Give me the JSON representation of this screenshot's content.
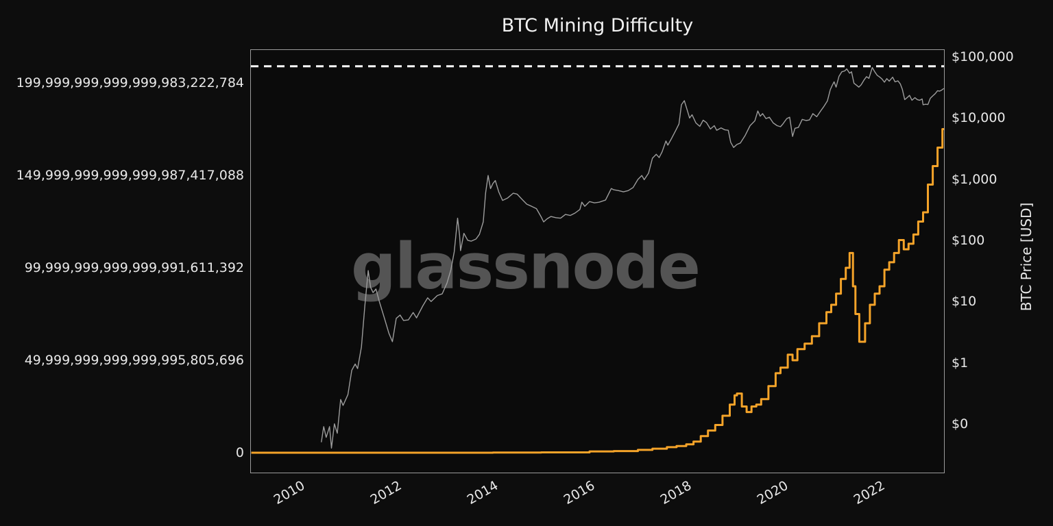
{
  "page": {
    "background": "#0d0d0d",
    "plot_frame_color": "#9c9c9c",
    "text_color": "#e8e8e8"
  },
  "chart_data": {
    "type": "line",
    "title": "BTC Mining Difficulty",
    "watermark": "glassnode",
    "watermark_color": "#545454",
    "right_ylabel": "BTC Price [USD]",
    "grid": false,
    "legend": "none",
    "xlim": [
      2008.993,
      2023.333
    ],
    "x_axis": {
      "ticks": [
        {
          "value": 2010,
          "label": "2010"
        },
        {
          "value": 2012,
          "label": "2012"
        },
        {
          "value": 2014,
          "label": "2014"
        },
        {
          "value": 2016,
          "label": "2016"
        },
        {
          "value": 2018,
          "label": "2018"
        },
        {
          "value": 2020,
          "label": "2020"
        },
        {
          "value": 2022,
          "label": "2022"
        }
      ]
    },
    "left_axis": {
      "scale": "linear",
      "lim": [
        -1.0741e+22,
        2.1778e+23
      ],
      "ticks": [
        {
          "value": 2e+23,
          "label": "199,999,999,999,999,983,222,784"
        },
        {
          "value": 1.5e+23,
          "label": "149,999,999,999,999,987,417,088"
        },
        {
          "value": 1e+23,
          "label": "99,999,999,999,999,991,611,392"
        },
        {
          "value": 5e+22,
          "label": "49,999,999,999,999,995,805,696"
        },
        {
          "value": 0,
          "label": "0"
        }
      ]
    },
    "right_axis": {
      "scale": "log",
      "lim": [
        0.01595,
        129400
      ],
      "ticks": [
        {
          "value": 100000,
          "label": "$100,000"
        },
        {
          "value": 10000,
          "label": "$10,000"
        },
        {
          "value": 1000,
          "label": "$1,000"
        },
        {
          "value": 100,
          "label": "$100"
        },
        {
          "value": 10,
          "label": "$10"
        },
        {
          "value": 1,
          "label": "$1"
        },
        {
          "value": 0.1,
          "label": "$0"
        }
      ]
    },
    "annotations": [
      {
        "type": "hline",
        "axis": "left",
        "value": 2.09e+23,
        "color": "#ffffff",
        "dash": "11 8",
        "width": 3
      }
    ],
    "series": [
      {
        "name": "BTC Price (USD)",
        "axis": "right",
        "color": "#9d9d9d",
        "width": 1.4,
        "style": "line",
        "points": [
          [
            2010.45,
            0.05
          ],
          [
            2010.5,
            0.09
          ],
          [
            2010.55,
            0.06
          ],
          [
            2010.62,
            0.09
          ],
          [
            2010.66,
            0.04
          ],
          [
            2010.72,
            0.1
          ],
          [
            2010.78,
            0.07
          ],
          [
            2010.85,
            0.25
          ],
          [
            2010.9,
            0.2
          ],
          [
            2011.0,
            0.3
          ],
          [
            2011.08,
            0.75
          ],
          [
            2011.15,
            0.95
          ],
          [
            2011.2,
            0.8
          ],
          [
            2011.28,
            1.8
          ],
          [
            2011.35,
            8.5
          ],
          [
            2011.42,
            32
          ],
          [
            2011.47,
            17
          ],
          [
            2011.52,
            14
          ],
          [
            2011.58,
            16
          ],
          [
            2011.65,
            10
          ],
          [
            2011.75,
            5.5
          ],
          [
            2011.85,
            3
          ],
          [
            2011.92,
            2.2
          ],
          [
            2012.0,
            5.3
          ],
          [
            2012.08,
            6
          ],
          [
            2012.15,
            4.9
          ],
          [
            2012.25,
            5
          ],
          [
            2012.35,
            6.6
          ],
          [
            2012.42,
            5.4
          ],
          [
            2012.55,
            8.5
          ],
          [
            2012.65,
            11.5
          ],
          [
            2012.72,
            10
          ],
          [
            2012.85,
            12.5
          ],
          [
            2012.95,
            13.3
          ],
          [
            2013.05,
            20
          ],
          [
            2013.13,
            33
          ],
          [
            2013.2,
            65
          ],
          [
            2013.27,
            230
          ],
          [
            2013.31,
            120
          ],
          [
            2013.33,
            68
          ],
          [
            2013.4,
            130
          ],
          [
            2013.48,
            100
          ],
          [
            2013.55,
            97
          ],
          [
            2013.65,
            105
          ],
          [
            2013.72,
            125
          ],
          [
            2013.8,
            200
          ],
          [
            2013.85,
            600
          ],
          [
            2013.9,
            1150
          ],
          [
            2013.95,
            700
          ],
          [
            2014.0,
            850
          ],
          [
            2014.05,
            950
          ],
          [
            2014.12,
            620
          ],
          [
            2014.2,
            450
          ],
          [
            2014.3,
            490
          ],
          [
            2014.42,
            590
          ],
          [
            2014.5,
            570
          ],
          [
            2014.6,
            470
          ],
          [
            2014.7,
            390
          ],
          [
            2014.8,
            360
          ],
          [
            2014.9,
            330
          ],
          [
            2015.0,
            240
          ],
          [
            2015.05,
            200
          ],
          [
            2015.12,
            225
          ],
          [
            2015.2,
            245
          ],
          [
            2015.3,
            235
          ],
          [
            2015.4,
            230
          ],
          [
            2015.5,
            265
          ],
          [
            2015.6,
            255
          ],
          [
            2015.7,
            280
          ],
          [
            2015.8,
            320
          ],
          [
            2015.84,
            420
          ],
          [
            2015.9,
            360
          ],
          [
            2016.0,
            430
          ],
          [
            2016.1,
            410
          ],
          [
            2016.2,
            420
          ],
          [
            2016.33,
            455
          ],
          [
            2016.45,
            705
          ],
          [
            2016.5,
            670
          ],
          [
            2016.6,
            650
          ],
          [
            2016.7,
            620
          ],
          [
            2016.8,
            650
          ],
          [
            2016.9,
            730
          ],
          [
            2017.0,
            990
          ],
          [
            2017.08,
            1150
          ],
          [
            2017.13,
            980
          ],
          [
            2017.22,
            1250
          ],
          [
            2017.3,
            2200
          ],
          [
            2017.38,
            2550
          ],
          [
            2017.44,
            2250
          ],
          [
            2017.5,
            2800
          ],
          [
            2017.58,
            4200
          ],
          [
            2017.62,
            3600
          ],
          [
            2017.7,
            4700
          ],
          [
            2017.78,
            6200
          ],
          [
            2017.85,
            8000
          ],
          [
            2017.9,
            16500
          ],
          [
            2017.96,
            19200
          ],
          [
            2018.02,
            13500
          ],
          [
            2018.07,
            10000
          ],
          [
            2018.12,
            11300
          ],
          [
            2018.2,
            8300
          ],
          [
            2018.28,
            7300
          ],
          [
            2018.35,
            9200
          ],
          [
            2018.42,
            8400
          ],
          [
            2018.5,
            6600
          ],
          [
            2018.58,
            7500
          ],
          [
            2018.63,
            6300
          ],
          [
            2018.72,
            6900
          ],
          [
            2018.8,
            6400
          ],
          [
            2018.87,
            6300
          ],
          [
            2018.92,
            4000
          ],
          [
            2018.98,
            3300
          ],
          [
            2019.05,
            3700
          ],
          [
            2019.12,
            3900
          ],
          [
            2019.22,
            5200
          ],
          [
            2019.32,
            7500
          ],
          [
            2019.42,
            9000
          ],
          [
            2019.48,
            13000
          ],
          [
            2019.53,
            10700
          ],
          [
            2019.58,
            11800
          ],
          [
            2019.65,
            9800
          ],
          [
            2019.72,
            10300
          ],
          [
            2019.8,
            8300
          ],
          [
            2019.88,
            7500
          ],
          [
            2019.95,
            7200
          ],
          [
            2020.0,
            8000
          ],
          [
            2020.08,
            9800
          ],
          [
            2020.14,
            10300
          ],
          [
            2020.2,
            5000
          ],
          [
            2020.25,
            6800
          ],
          [
            2020.32,
            7000
          ],
          [
            2020.4,
            9500
          ],
          [
            2020.48,
            9100
          ],
          [
            2020.55,
            9300
          ],
          [
            2020.62,
            11800
          ],
          [
            2020.7,
            10500
          ],
          [
            2020.78,
            13000
          ],
          [
            2020.85,
            15500
          ],
          [
            2020.92,
            19000
          ],
          [
            2020.98,
            29000
          ],
          [
            2021.02,
            34000
          ],
          [
            2021.06,
            39000
          ],
          [
            2021.1,
            32000
          ],
          [
            2021.16,
            48000
          ],
          [
            2021.22,
            57000
          ],
          [
            2021.28,
            59000
          ],
          [
            2021.32,
            63500
          ],
          [
            2021.38,
            54000
          ],
          [
            2021.42,
            57000
          ],
          [
            2021.47,
            37000
          ],
          [
            2021.53,
            34000
          ],
          [
            2021.57,
            32000
          ],
          [
            2021.62,
            35000
          ],
          [
            2021.68,
            42000
          ],
          [
            2021.73,
            47500
          ],
          [
            2021.78,
            44500
          ],
          [
            2021.85,
            66900
          ],
          [
            2021.9,
            57000
          ],
          [
            2021.95,
            50000
          ],
          [
            2022.0,
            47000
          ],
          [
            2022.05,
            43500
          ],
          [
            2022.1,
            38500
          ],
          [
            2022.15,
            44000
          ],
          [
            2022.2,
            40000
          ],
          [
            2022.27,
            46500
          ],
          [
            2022.32,
            39000
          ],
          [
            2022.38,
            40500
          ],
          [
            2022.43,
            36000
          ],
          [
            2022.47,
            29500
          ],
          [
            2022.52,
            20000
          ],
          [
            2022.57,
            21500
          ],
          [
            2022.62,
            23500
          ],
          [
            2022.67,
            19500
          ],
          [
            2022.73,
            21500
          ],
          [
            2022.78,
            20000
          ],
          [
            2022.83,
            19500
          ],
          [
            2022.88,
            20500
          ],
          [
            2022.9,
            16500
          ],
          [
            2022.95,
            16800
          ],
          [
            2023.0,
            16600
          ],
          [
            2023.05,
            21000
          ],
          [
            2023.1,
            23000
          ],
          [
            2023.15,
            25000
          ],
          [
            2023.2,
            28000
          ],
          [
            2023.24,
            27500
          ],
          [
            2023.28,
            28500
          ],
          [
            2023.33,
            30400
          ]
        ]
      },
      {
        "name": "Mining Difficulty",
        "axis": "left",
        "color": "#f4a329",
        "width": 3,
        "style": "step",
        "points": [
          [
            2009.0,
            0
          ],
          [
            2010.0,
            1e+18
          ],
          [
            2011.0,
            5e+18
          ],
          [
            2012.0,
            6e+18
          ],
          [
            2013.0,
            1e+19
          ],
          [
            2014.0,
            1e+20
          ],
          [
            2015.0,
            2e+20
          ],
          [
            2016.0,
            7e+20
          ],
          [
            2016.5,
            9e+20
          ],
          [
            2017.0,
            1.5e+21
          ],
          [
            2017.3,
            2.2e+21
          ],
          [
            2017.6,
            3e+21
          ],
          [
            2017.8,
            3.6e+21
          ],
          [
            2018.0,
            4.5e+21
          ],
          [
            2018.15,
            6e+21
          ],
          [
            2018.3,
            9e+21
          ],
          [
            2018.45,
            1.2e+22
          ],
          [
            2018.6,
            1.5e+22
          ],
          [
            2018.75,
            2e+22
          ],
          [
            2018.9,
            2.6e+22
          ],
          [
            2019.0,
            3.1e+22
          ],
          [
            2019.05,
            3.2e+22
          ],
          [
            2019.15,
            2.5e+22
          ],
          [
            2019.25,
            2.2e+22
          ],
          [
            2019.35,
            2.5e+22
          ],
          [
            2019.45,
            2.6e+22
          ],
          [
            2019.55,
            2.9e+22
          ],
          [
            2019.7,
            3.6e+22
          ],
          [
            2019.85,
            4.3e+22
          ],
          [
            2019.95,
            4.6e+22
          ],
          [
            2020.1,
            5.3e+22
          ],
          [
            2020.2,
            5e+22
          ],
          [
            2020.3,
            5.6e+22
          ],
          [
            2020.45,
            5.9e+22
          ],
          [
            2020.6,
            6.3e+22
          ],
          [
            2020.75,
            7e+22
          ],
          [
            2020.9,
            7.6e+22
          ],
          [
            2021.0,
            8e+22
          ],
          [
            2021.1,
            8.6e+22
          ],
          [
            2021.2,
            9.4e+22
          ],
          [
            2021.3,
            1e+23
          ],
          [
            2021.38,
            1.08e+23
          ],
          [
            2021.45,
            9e+22
          ],
          [
            2021.5,
            7.5e+22
          ],
          [
            2021.58,
            6e+22
          ],
          [
            2021.7,
            7e+22
          ],
          [
            2021.8,
            8e+22
          ],
          [
            2021.9,
            8.6e+22
          ],
          [
            2022.0,
            9e+22
          ],
          [
            2022.1,
            9.9e+22
          ],
          [
            2022.2,
            1.03e+23
          ],
          [
            2022.3,
            1.08e+23
          ],
          [
            2022.4,
            1.15e+23
          ],
          [
            2022.5,
            1.1e+23
          ],
          [
            2022.6,
            1.13e+23
          ],
          [
            2022.7,
            1.18e+23
          ],
          [
            2022.8,
            1.25e+23
          ],
          [
            2022.9,
            1.3e+23
          ],
          [
            2023.0,
            1.45e+23
          ],
          [
            2023.1,
            1.55e+23
          ],
          [
            2023.2,
            1.65e+23
          ],
          [
            2023.3,
            1.75e+23
          ],
          [
            2023.38,
            1.85e+23
          ],
          [
            2023.44,
            1.95e+23
          ],
          [
            2023.48,
            2.08e+23
          ]
        ]
      }
    ]
  }
}
